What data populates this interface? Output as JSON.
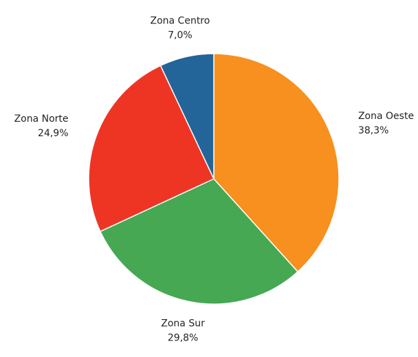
{
  "chart_data": {
    "type": "pie",
    "categories": [
      "Zona Oeste",
      "Zona Sur",
      "Zona Norte",
      "Zona Centro"
    ],
    "values": [
      38.3,
      29.8,
      24.9,
      7.0
    ],
    "value_labels": [
      "38,3%",
      "29,8%",
      "24,9%",
      "7,0%"
    ],
    "colors": [
      "#f7901e",
      "#46a853",
      "#ee3524",
      "#236598"
    ]
  }
}
